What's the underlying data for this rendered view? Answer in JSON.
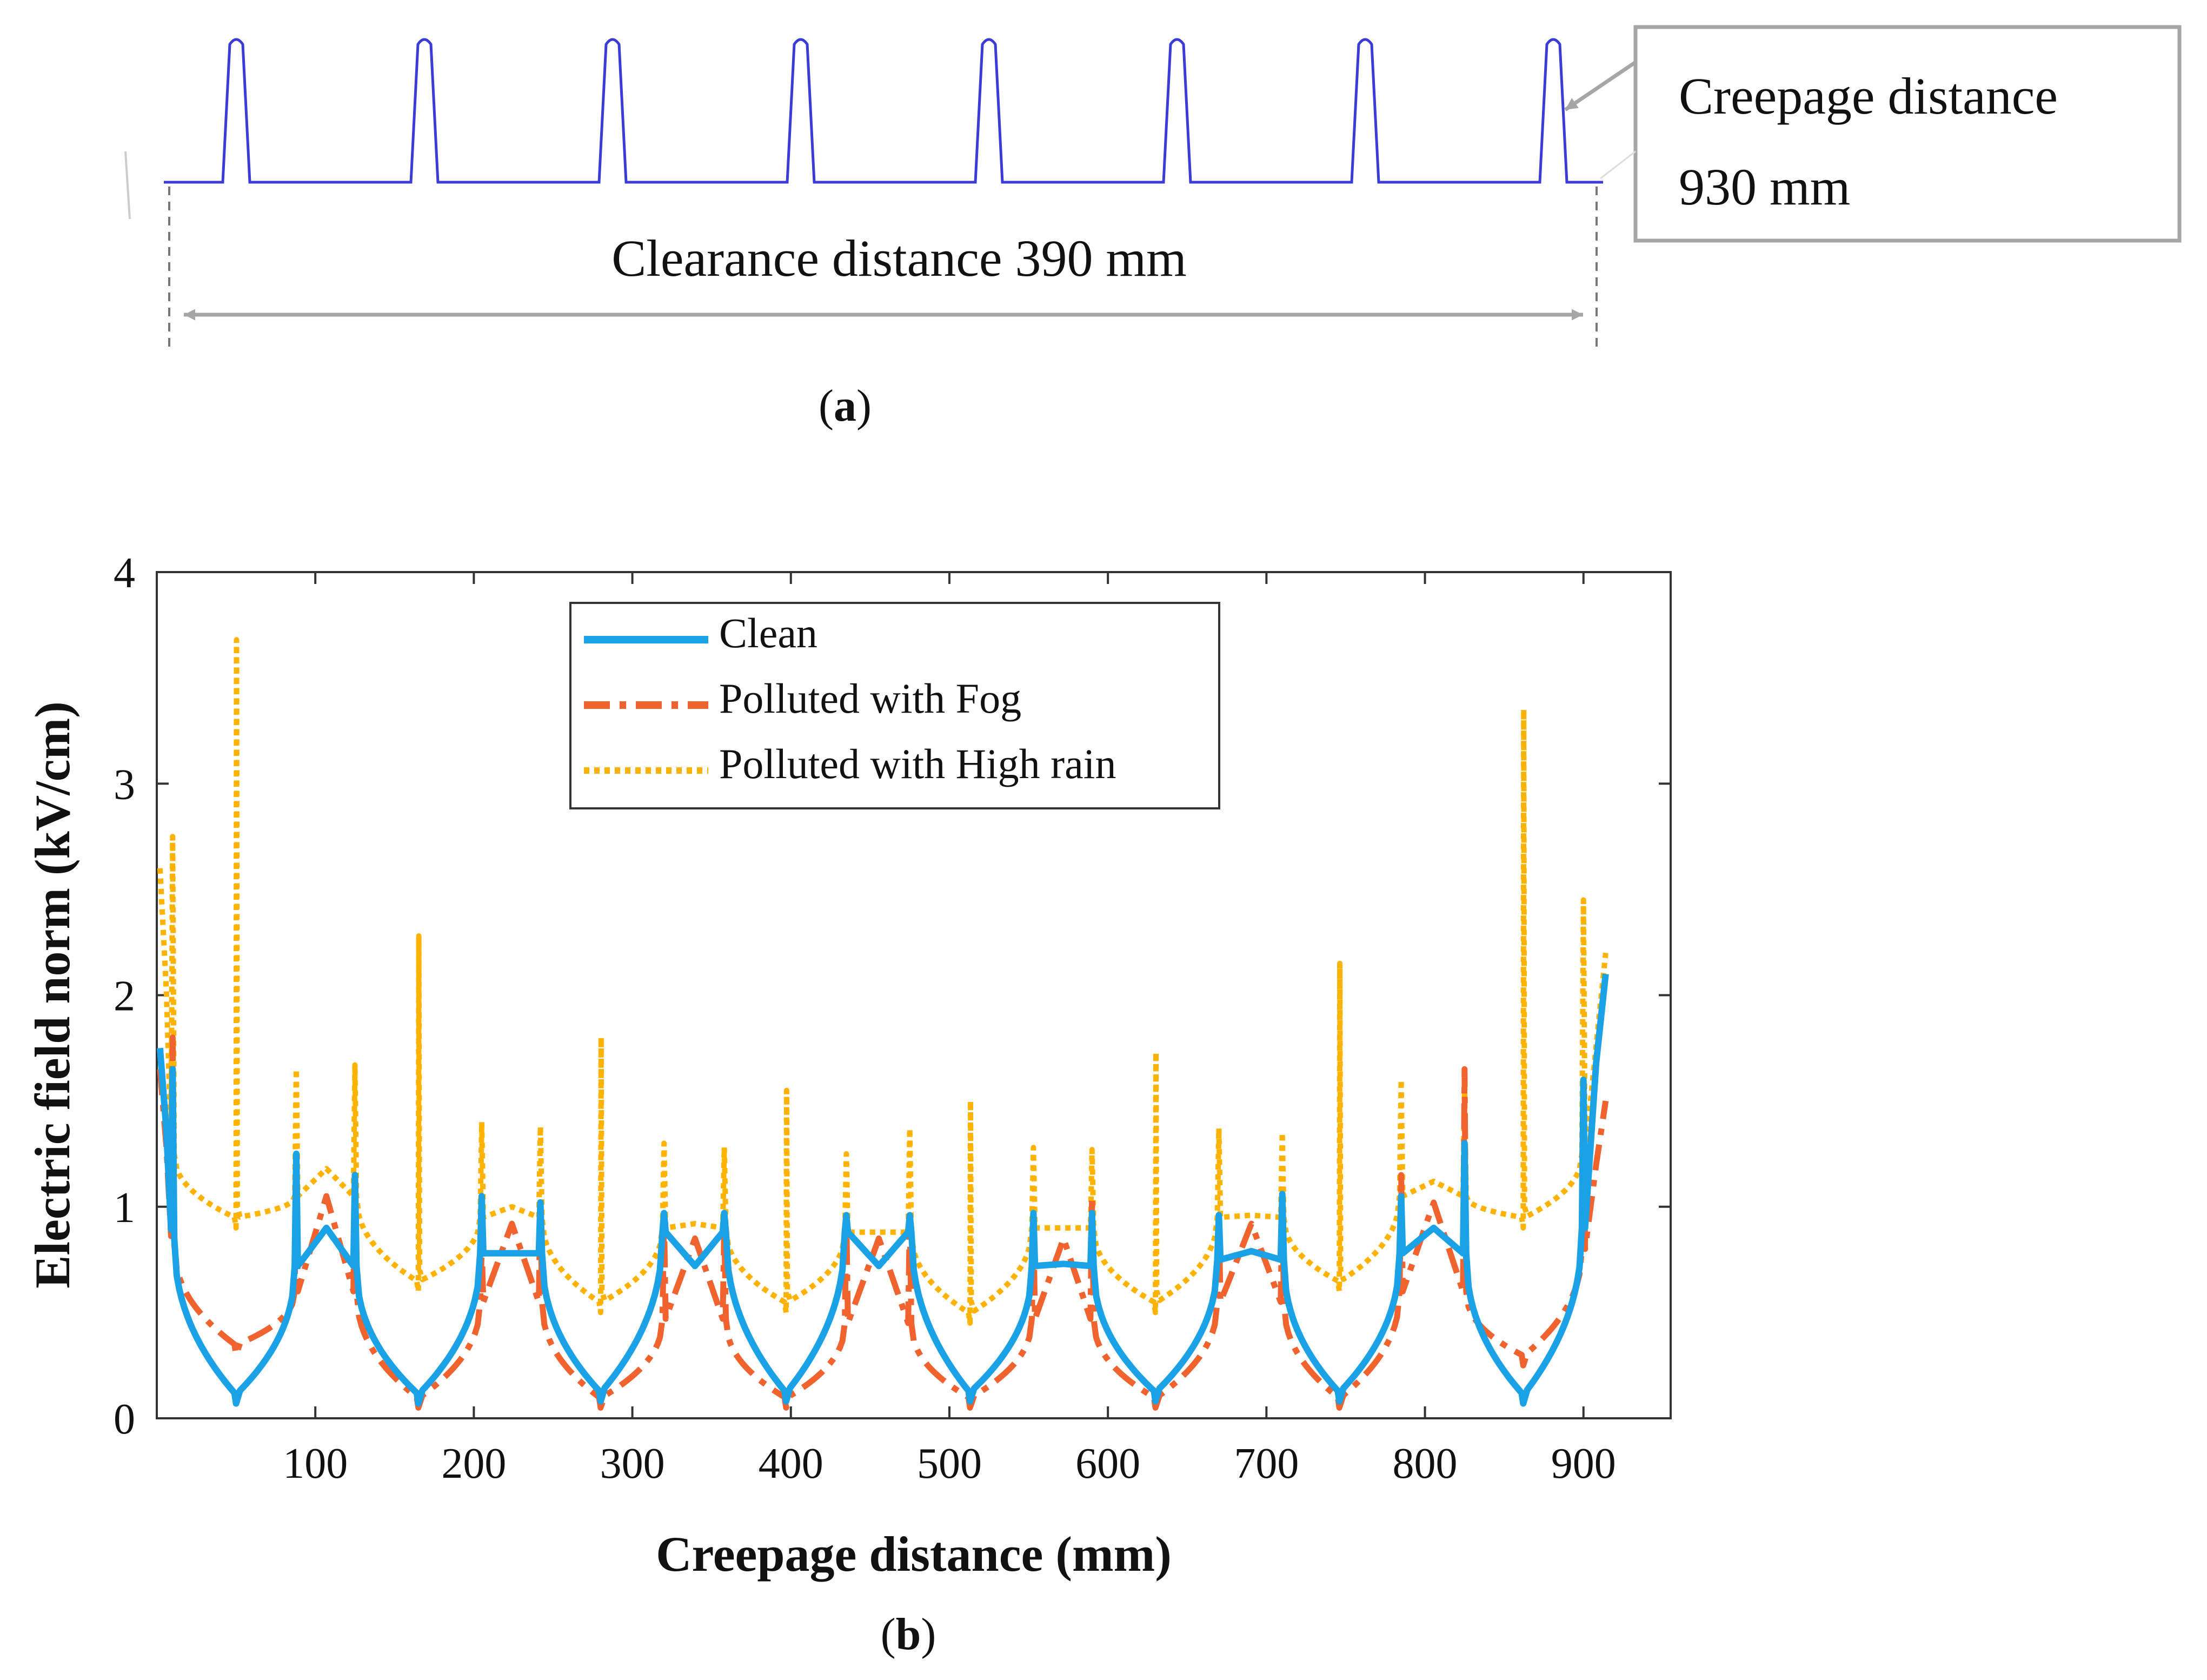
{
  "panel_a": {
    "clearance_label": "Clearance distance 390 mm",
    "callout_line1": "Creepage distance",
    "callout_line2": "930 mm",
    "caption": "a",
    "shed_count": 8,
    "profile_color": "#3b3bd6"
  },
  "panel_b": {
    "caption": "b"
  },
  "chart_data": {
    "type": "line",
    "xlabel": "Creepage distance (mm)",
    "ylabel": "Electric field norm (kV/cm)",
    "xlim": [
      0,
      955
    ],
    "ylim": [
      0,
      4
    ],
    "xticks": [
      100,
      200,
      300,
      400,
      500,
      600,
      700,
      800,
      900
    ],
    "yticks": [
      0,
      1,
      2,
      3,
      4
    ],
    "legend_position": "top-center",
    "minima_x": [
      50,
      165,
      280,
      397,
      513,
      630,
      746,
      862
    ],
    "flank_x": [
      [
        10,
        88
      ],
      [
        125,
        205
      ],
      [
        242,
        320
      ],
      [
        358,
        435
      ],
      [
        475,
        553
      ],
      [
        590,
        670
      ],
      [
        710,
        785
      ],
      [
        825,
        900
      ]
    ],
    "series": [
      {
        "name": "Clean",
        "color": "#1ba1e6",
        "style": "solid",
        "start_value": 1.75,
        "end_value": 2.1,
        "shoulder_values": [
          0.85,
          0.72,
          0.78,
          0.88,
          0.88,
          0.72,
          0.75,
          0.78,
          0.9
        ],
        "peak_values": [
          0.9,
          0.78,
          0.72,
          0.72,
          0.73,
          0.79,
          0.9
        ],
        "valley_values": [
          0.07,
          0.07,
          0.08,
          0.08,
          0.08,
          0.08,
          0.08,
          0.07
        ],
        "flank_spike_values": [
          1.65,
          1.25,
          1.15,
          1.05,
          1.02,
          0.97,
          0.97,
          0.96,
          0.96,
          0.97,
          0.97,
          0.96,
          1.06,
          1.05,
          1.3,
          1.6
        ]
      },
      {
        "name": "Polluted with Fog",
        "color": "#f0622e",
        "style": "dashdot",
        "start_value": 1.65,
        "end_value": 1.5,
        "shoulder_values": [
          0.82,
          0.6,
          0.55,
          0.47,
          0.45,
          0.47,
          0.55,
          0.6,
          0.8
        ],
        "peak_values": [
          1.05,
          0.92,
          0.85,
          0.85,
          0.85,
          0.92,
          1.02
        ],
        "valley_values": [
          0.3,
          0.05,
          0.05,
          0.05,
          0.05,
          0.05,
          0.05,
          0.25
        ],
        "flank_spike_values": [
          1.8,
          1.2,
          1.15,
          0.8,
          1.05,
          0.95,
          0.9,
          0.95,
          0.95,
          0.9,
          1.05,
          0.95,
          1.0,
          1.15,
          1.65,
          1.6
        ]
      },
      {
        "name": "Polluted with High rain",
        "color": "#ffb300",
        "style": "dotted",
        "start_value": 2.6,
        "end_value": 2.2,
        "shoulder_values": [
          1.25,
          1.05,
          0.95,
          0.9,
          0.88,
          0.9,
          0.95,
          1.05,
          1.25
        ],
        "peak_values": [
          1.18,
          1.0,
          0.92,
          0.88,
          0.9,
          0.96,
          1.12
        ],
        "valley_values": [
          0.9,
          0.6,
          0.5,
          0.5,
          0.45,
          0.5,
          0.6,
          0.9
        ],
        "minima_spike_values": [
          3.68,
          2.28,
          1.8,
          1.55,
          1.5,
          1.73,
          2.15,
          3.35
        ],
        "flank_spike_values": [
          2.75,
          1.65,
          1.67,
          1.4,
          1.38,
          1.3,
          1.28,
          1.25,
          1.37,
          1.28,
          1.27,
          1.37,
          1.35,
          1.6,
          1.57,
          2.45
        ]
      }
    ]
  }
}
